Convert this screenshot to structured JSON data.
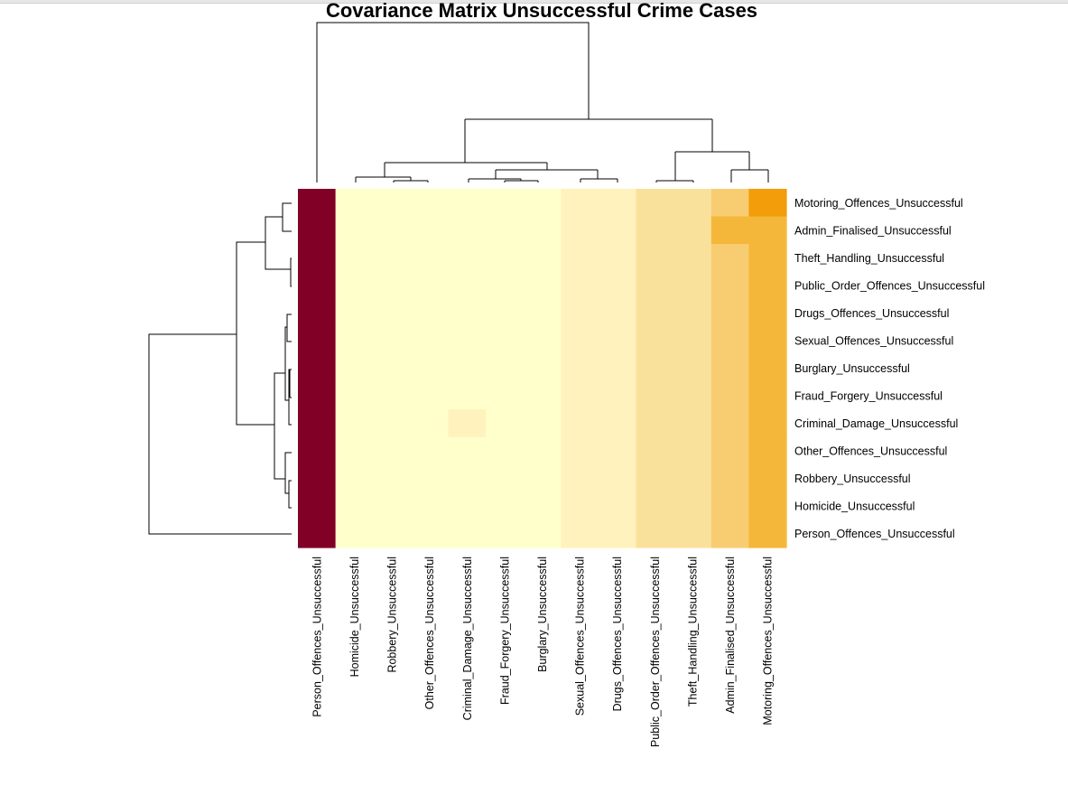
{
  "chart_data": {
    "type": "heatmap",
    "title": "Covariance Matrix Unsuccessful Crime Cases",
    "col_labels": [
      "Person_Offences_Unsuccessful",
      "Homicide_Unsuccessful",
      "Robbery_Unsuccessful",
      "Other_Offences_Unsuccessful",
      "Criminal_Damage_Unsuccessful",
      "Fraud_Forgery_Unsuccessful",
      "Burglary_Unsuccessful",
      "Sexual_Offences_Unsuccessful",
      "Drugs_Offences_Unsuccessful",
      "Public_Order_Offences_Unsuccessful",
      "Theft_Handling_Unsuccessful",
      "Admin_Finalised_Unsuccessful",
      "Motoring_Offences_Unsuccessful"
    ],
    "row_labels": [
      "Motoring_Offences_Unsuccessful",
      "Admin_Finalised_Unsuccessful",
      "Theft_Handling_Unsuccessful",
      "Public_Order_Offences_Unsuccessful",
      "Drugs_Offences_Unsuccessful",
      "Sexual_Offences_Unsuccessful",
      "Burglary_Unsuccessful",
      "Fraud_Forgery_Unsuccessful",
      "Criminal_Damage_Unsuccessful",
      "Other_Offences_Unsuccessful",
      "Robbery_Unsuccessful",
      "Homicide_Unsuccessful",
      "Person_Offences_Unsuccessful"
    ],
    "colors": [
      "#800026",
      "#ffffcc",
      "#fff2bd",
      "#fae19b",
      "#f8cd72",
      "#f5b73a",
      "#f29d09"
    ],
    "cell_levels": [
      [
        0,
        1,
        1,
        1,
        1,
        1,
        1,
        2,
        2,
        3,
        3,
        4,
        6
      ],
      [
        0,
        1,
        1,
        1,
        1,
        1,
        1,
        2,
        2,
        3,
        3,
        5,
        5
      ],
      [
        0,
        1,
        1,
        1,
        1,
        1,
        1,
        2,
        2,
        3,
        3,
        4,
        5
      ],
      [
        0,
        1,
        1,
        1,
        1,
        1,
        1,
        2,
        2,
        3,
        3,
        4,
        5
      ],
      [
        0,
        1,
        1,
        1,
        1,
        1,
        1,
        2,
        2,
        3,
        3,
        4,
        5
      ],
      [
        0,
        1,
        1,
        1,
        1,
        1,
        1,
        2,
        2,
        3,
        3,
        4,
        5
      ],
      [
        0,
        1,
        1,
        1,
        1,
        1,
        1,
        2,
        2,
        3,
        3,
        4,
        5
      ],
      [
        0,
        1,
        1,
        1,
        1,
        1,
        1,
        2,
        2,
        3,
        3,
        4,
        5
      ],
      [
        0,
        1,
        1,
        1,
        2,
        1,
        1,
        2,
        2,
        3,
        3,
        4,
        5
      ],
      [
        0,
        1,
        1,
        1,
        1,
        1,
        1,
        2,
        2,
        3,
        3,
        4,
        5
      ],
      [
        0,
        1,
        1,
        1,
        1,
        1,
        1,
        2,
        2,
        3,
        3,
        4,
        5
      ],
      [
        0,
        1,
        1,
        1,
        1,
        1,
        1,
        2,
        2,
        3,
        3,
        4,
        5
      ],
      [
        0,
        1,
        1,
        1,
        1,
        1,
        1,
        2,
        2,
        3,
        3,
        4,
        5
      ]
    ],
    "dendrogram_merges": [
      {
        "a": "Admin_Finalised_Unsuccessful",
        "b": "Motoring_Offences_Unsuccessful",
        "height": 0.08
      },
      {
        "a": "Public_Order_Offences_Unsuccessful",
        "b": "Theft_Handling_Unsuccessful",
        "height": 0.03
      },
      {
        "a": "Burglary_Unsuccessful",
        "b": "Fraud_Forgery_Unsuccessful",
        "height": 0.02
      },
      {
        "a": "Homicide_Unsuccessful",
        "b": "Robbery_Unsuccessful",
        "height": 0.02
      },
      {
        "a": "Sexual_Offences_Unsuccessful",
        "b": "Drugs_Offences_Unsuccessful",
        "height": 0.03
      }
    ]
  }
}
